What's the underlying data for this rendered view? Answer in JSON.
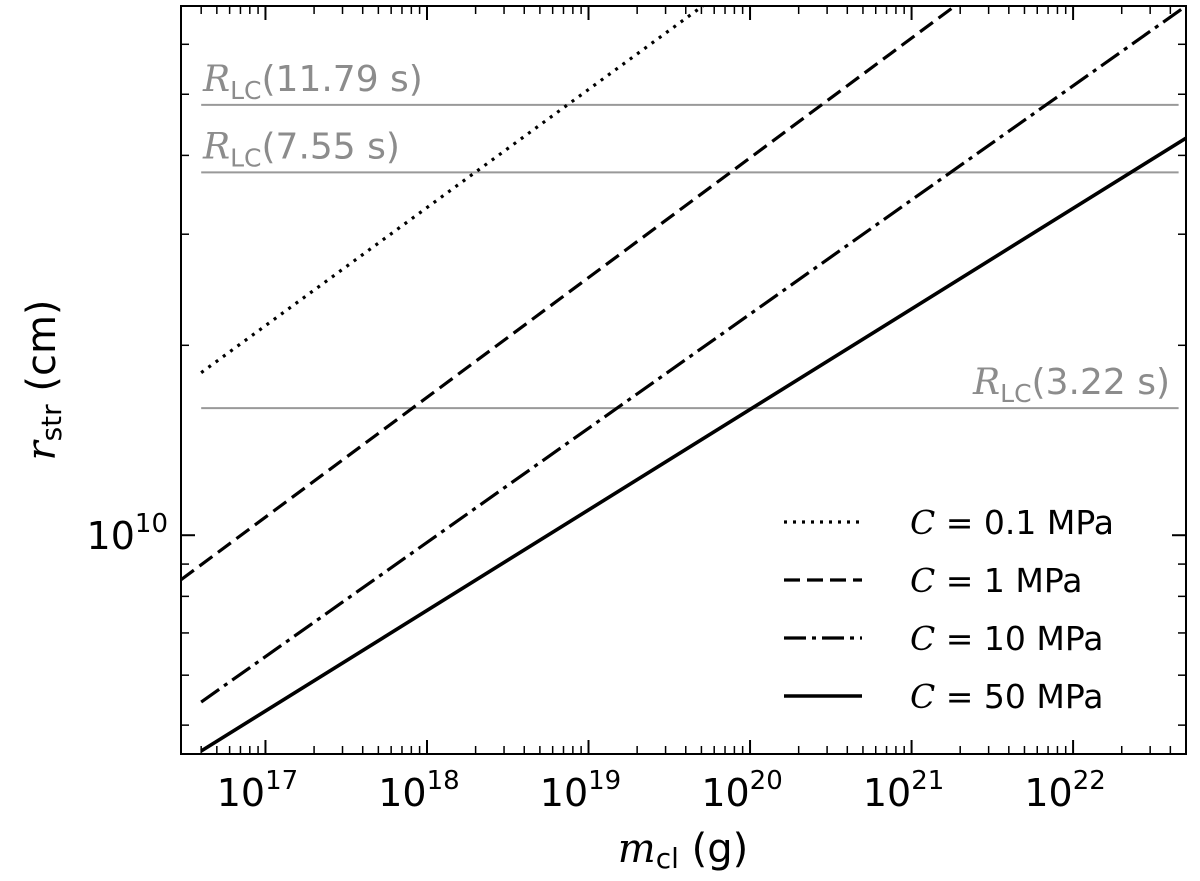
{
  "chart_data": {
    "type": "line",
    "title": "",
    "xscale": "log",
    "yscale": "log",
    "xlim": [
      3e+16,
      5e+22
    ],
    "ylim": [
      4500000000.0,
      69000000000.0
    ],
    "grid": false,
    "legend_position": "bottom-right",
    "xlabel": {
      "main": "m",
      "sub": "cl",
      "unit": " (g)"
    },
    "ylabel": {
      "main": "r",
      "sub": "str",
      "unit": " (cm)"
    },
    "xticks": [
      {
        "value": 1e+17,
        "base": "10",
        "exp": "17"
      },
      {
        "value": 1e+18,
        "base": "10",
        "exp": "18"
      },
      {
        "value": 1e+19,
        "base": "10",
        "exp": "19"
      },
      {
        "value": 1e+20,
        "base": "10",
        "exp": "20"
      },
      {
        "value": 1e+21,
        "base": "10",
        "exp": "21"
      },
      {
        "value": 1e+22,
        "base": "10",
        "exp": "22"
      }
    ],
    "yticks": [
      {
        "value": 10000000000.0,
        "base": "10",
        "exp": "10"
      }
    ],
    "series": [
      {
        "name": "C = 0.1 MPa",
        "legend_math": "C",
        "legend_rest": " = 0.1 MPa",
        "dash": "dotted",
        "x": [
          4e+16,
          5.5e+19
        ],
        "y": [
          18100000000.0,
          70000000000.0
        ]
      },
      {
        "name": "C = 1 MPa",
        "legend_math": "C",
        "legend_rest": " = 1 MPa",
        "dash": "dashed",
        "x": [
          3e+16,
          2e+21
        ],
        "y": [
          8500000000.0,
          70000000000.0
        ]
      },
      {
        "name": "C = 10 MPa",
        "legend_math": "C",
        "legend_rest": " = 10 MPa",
        "dash": "dashdot",
        "x": [
          4e+16,
          5e+22
        ],
        "y": [
          5440000000.0,
          69000000000.0
        ]
      },
      {
        "name": "C = 50 MPa",
        "legend_math": "C",
        "legend_rest": " = 50 MPa",
        "dash": "solid",
        "x": [
          4e+16,
          5e+22
        ],
        "y": [
          4550000000.0,
          42600000000.0
        ]
      }
    ],
    "hlines": [
      {
        "main": "R",
        "sub": "LC",
        "period": "(11.79 s)",
        "y": 48100000000.0,
        "label_position": "left"
      },
      {
        "main": "R",
        "sub": "LC",
        "period": "(7.55 s)",
        "y": 37600000000.0,
        "label_position": "left"
      },
      {
        "main": "R",
        "sub": "LC",
        "period": "(3.22 s)",
        "y": 15900000000.0,
        "label_position": "right"
      }
    ]
  }
}
